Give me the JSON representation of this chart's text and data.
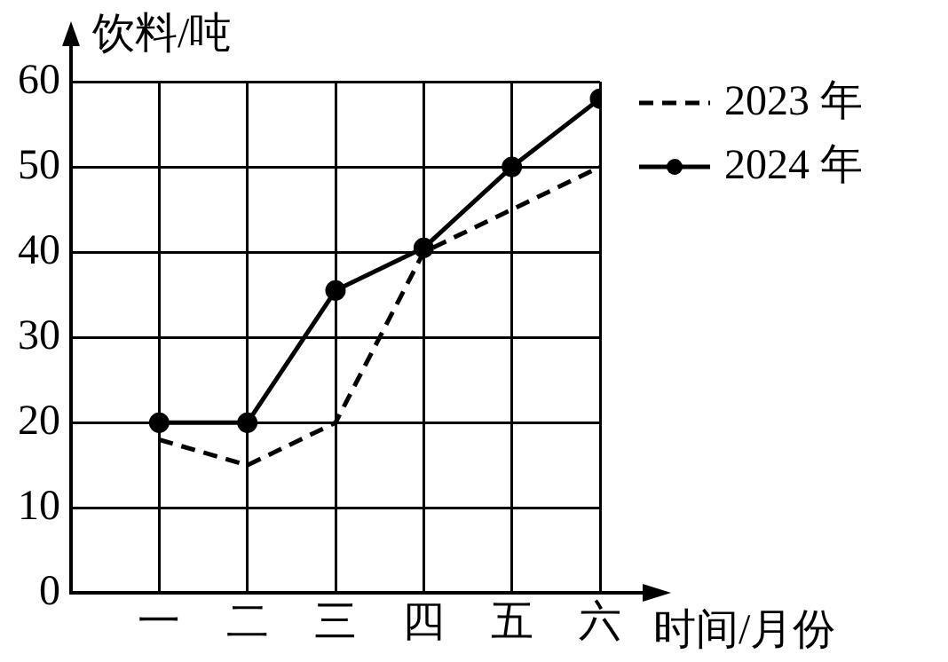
{
  "chart_data": {
    "type": "line",
    "xlabel": "时间/月份",
    "ylabel": "饮料/吨",
    "categories": [
      "一",
      "二",
      "三",
      "四",
      "五",
      "六"
    ],
    "series": [
      {
        "name": "2023 年",
        "color": "#000000",
        "line_style": "dashed",
        "marker": "none",
        "values": [
          18,
          15,
          20,
          40,
          45,
          50
        ]
      },
      {
        "name": "2024 年",
        "color": "#000000",
        "line_style": "solid",
        "marker": "circle",
        "values": [
          20,
          20,
          35.5,
          40.5,
          50,
          58
        ]
      }
    ],
    "ylim": [
      0,
      60
    ],
    "yticks": [
      0,
      10,
      20,
      30,
      40,
      50,
      60
    ],
    "grid": true,
    "legend": "top right"
  }
}
